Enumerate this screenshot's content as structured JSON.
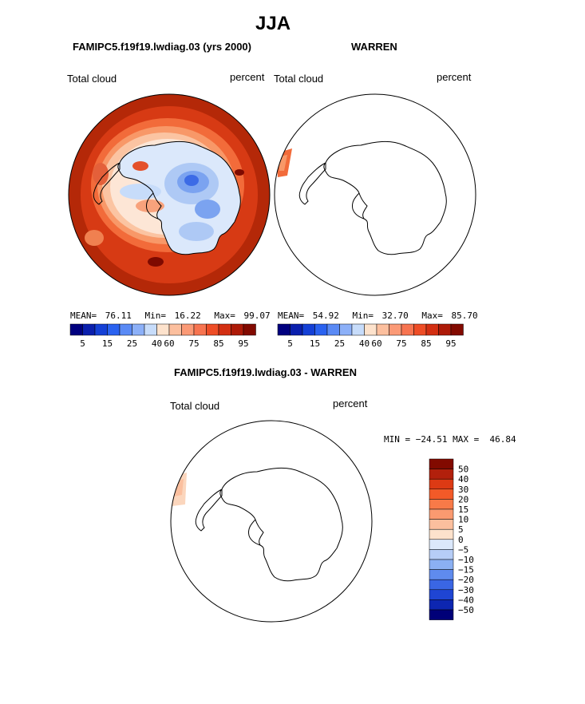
{
  "page_title": "JJA",
  "colors": {
    "colorbar_10": [
      "#00007f",
      "#0a1fad",
      "#1440d6",
      "#2a62f0",
      "#5a8af5",
      "#8cb0f8",
      "#c7dcfa",
      "#fde2cc",
      "#fcbf9e",
      "#fb9a76",
      "#f77450",
      "#ee4d26",
      "#d32f12",
      "#ad1a08",
      "#820a00"
    ],
    "diff_colorbar": [
      "#820a00",
      "#b2200c",
      "#dd3a14",
      "#f35a28",
      "#f87a48",
      "#fa9a70",
      "#fbbf9e",
      "#fde2cc",
      "#dbe8fb",
      "#b6cdf7",
      "#8bb0f3",
      "#5f8bee",
      "#3a66e4",
      "#1f45d3",
      "#0d26b1",
      "#000078"
    ],
    "outline": "#000000"
  },
  "panel_left": {
    "title": "FAMIPC5.f19f19.lwdiag.03 (yrs 2000)",
    "variable": "Total cloud",
    "units": "percent",
    "stats": {
      "mean_label": "MEAN=",
      "mean": "76.11",
      "min_label": "Min=",
      "min": "16.22",
      "max_label": "Max=",
      "max": "99.07"
    },
    "colorbar_labels": [
      "5",
      "15",
      "25",
      "40",
      "60",
      "75",
      "85",
      "95"
    ]
  },
  "panel_right": {
    "title": "WARREN",
    "variable": "Total cloud",
    "units": "percent",
    "stats": {
      "mean_label": "MEAN=",
      "mean": "54.92",
      "min_label": "Min=",
      "min": "32.70",
      "max_label": "Max=",
      "max": "85.70"
    },
    "colorbar_labels": [
      "5",
      "15",
      "25",
      "40",
      "60",
      "75",
      "85",
      "95"
    ]
  },
  "panel_diff": {
    "title": "FAMIPC5.f19f19.lwdiag.03 - WARREN",
    "variable": "Total cloud",
    "units": "percent",
    "minmax_text": "MIN = −24.51 MAX =  46.84",
    "colorbar_labels": [
      "50",
      "40",
      "30",
      "20",
      "15",
      "10",
      "5",
      "0",
      "−5",
      "−10",
      "−15",
      "−20",
      "−30",
      "−40",
      "−50"
    ]
  },
  "chart_data": [
    {
      "type": "heatmap",
      "title": "FAMIPC5.f19f19.lwdiag.03 (yrs 2000)",
      "season": "JJA",
      "variable": "Total cloud",
      "units": "percent",
      "projection": "south polar stereographic",
      "mean": 76.11,
      "min": 16.22,
      "max": 99.07,
      "contour_levels": [
        5,
        10,
        15,
        20,
        25,
        30,
        40,
        50,
        60,
        70,
        75,
        80,
        85,
        90,
        95
      ]
    },
    {
      "type": "heatmap",
      "title": "WARREN",
      "season": "JJA",
      "variable": "Total cloud",
      "units": "percent",
      "projection": "south polar stereographic",
      "mean": 54.92,
      "min": 32.7,
      "max": 85.7,
      "contour_levels": [
        5,
        10,
        15,
        20,
        25,
        30,
        40,
        50,
        60,
        70,
        75,
        80,
        85,
        90,
        95
      ]
    },
    {
      "type": "heatmap",
      "title": "FAMIPC5.f19f19.lwdiag.03 - WARREN",
      "season": "JJA",
      "variable": "Total cloud",
      "units": "percent",
      "projection": "south polar stereographic",
      "min": -24.51,
      "max": 46.84,
      "contour_levels": [
        -50,
        -40,
        -30,
        -20,
        -15,
        -10,
        -5,
        0,
        5,
        10,
        15,
        20,
        30,
        40,
        50
      ]
    }
  ]
}
